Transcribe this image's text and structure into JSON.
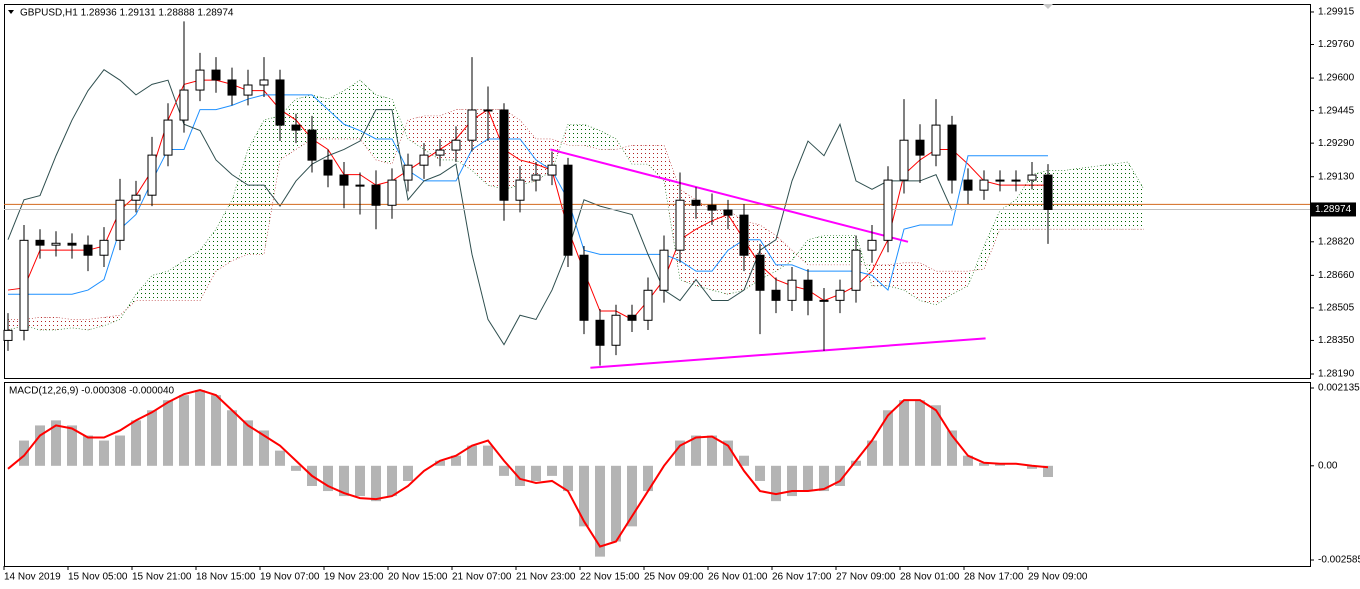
{
  "chart_data": [
    {
      "type": "candlestick",
      "title": "GBPUSD,H1  1.28936 1.29131 1.28888 1.28974",
      "x": [
        "14 Nov 2019",
        null,
        null,
        null,
        "15 Nov 05:00",
        null,
        null,
        null,
        "15 Nov 21:00",
        null,
        null,
        null,
        "18 Nov 15:00",
        null,
        null,
        null,
        "19 Nov 07:00",
        null,
        null,
        null,
        "19 Nov 23:00",
        null,
        null,
        null,
        "20 Nov 15:00",
        null,
        null,
        null,
        "21 Nov 07:00",
        null,
        null,
        null,
        "21 Nov 23:00",
        null,
        null,
        null,
        "22 Nov 15:00",
        null,
        null,
        null,
        "25 Nov 09:00",
        null,
        null,
        null,
        "26 Nov 01:00",
        null,
        null,
        null,
        "26 Nov 17:00",
        null,
        null,
        null,
        "27 Nov 09:00",
        null,
        null,
        null,
        "28 Nov 01:00",
        null,
        null,
        null,
        "28 Nov 17:00",
        null,
        null,
        null,
        "29 Nov 09:00",
        null,
        null,
        null,
        null,
        null,
        null,
        null
      ],
      "open": [
        1.2835,
        1.28398,
        1.28827,
        1.28804,
        1.28813,
        1.28804,
        1.28756,
        1.28827,
        1.29018,
        1.29042,
        1.29233,
        1.294,
        1.29543,
        1.29638,
        1.29591,
        1.29519,
        1.29567,
        1.29591,
        1.29376,
        1.29352,
        1.29209,
        1.29138,
        1.2909,
        1.2909,
        1.28994,
        1.29114,
        1.29185,
        1.29233,
        1.29257,
        1.29304,
        1.29448,
        1.29448,
        1.29018,
        1.29114,
        1.29138,
        1.29185,
        1.28756,
        1.28446,
        1.28327,
        1.2847,
        1.28446,
        1.28589,
        1.2878,
        1.29018,
        1.28994,
        1.28971,
        1.28947,
        1.28756,
        1.28589,
        1.28541,
        1.28637,
        1.28541,
        1.28541,
        1.28589,
        1.2878,
        1.28827,
        1.29114,
        1.29304,
        1.29233,
        1.29376,
        1.29114,
        1.29066,
        1.29114,
        1.29114,
        1.29114,
        1.29138,
        null,
        null,
        null,
        null,
        null,
        null
      ],
      "high": [
        1.2848,
        1.289,
        1.2888,
        1.2887,
        1.2886,
        1.2885,
        1.2889,
        1.2912,
        1.2911,
        1.2932,
        1.2948,
        1.2987,
        1.2972,
        1.297,
        1.2965,
        1.2964,
        1.297,
        1.2964,
        1.2943,
        1.2942,
        1.2926,
        1.292,
        1.2915,
        1.2916,
        1.2917,
        1.2924,
        1.2929,
        1.2931,
        1.2937,
        1.297,
        1.2956,
        1.2948,
        1.2918,
        1.292,
        1.2925,
        1.2922,
        1.288,
        1.285,
        1.2852,
        1.2852,
        1.2865,
        1.2885,
        1.2915,
        1.2908,
        1.2905,
        1.2902,
        1.29,
        1.2881,
        1.2865,
        1.287,
        1.2869,
        1.286,
        1.2864,
        1.2885,
        1.289,
        1.2918,
        1.295,
        1.2938,
        1.295,
        1.2942,
        1.2917,
        1.2916,
        1.2916,
        1.2916,
        1.292,
        1.2919,
        null,
        null,
        null,
        null,
        null,
        null
      ],
      "low": [
        1.283,
        1.2835,
        1.2874,
        1.2875,
        1.2874,
        1.2868,
        1.287,
        1.2878,
        1.2896,
        1.2899,
        1.2918,
        1.2934,
        1.2949,
        1.2953,
        1.2947,
        1.2947,
        1.2951,
        1.293,
        1.2929,
        1.2915,
        1.2908,
        1.2898,
        1.2895,
        1.2888,
        1.2893,
        1.2906,
        1.2912,
        1.2918,
        1.292,
        1.2925,
        1.293,
        1.2892,
        1.2896,
        1.2906,
        1.2909,
        1.287,
        1.2838,
        1.2823,
        1.2828,
        1.2839,
        1.284,
        1.2853,
        1.2872,
        1.2893,
        1.289,
        1.2888,
        1.2868,
        1.2838,
        1.2848,
        1.2849,
        1.2847,
        1.283,
        1.2848,
        1.2853,
        1.2872,
        1.2877,
        1.2905,
        1.291,
        1.2918,
        1.2905,
        1.29,
        1.2902,
        1.2906,
        1.2906,
        1.2907,
        1.2881,
        null,
        null,
        null,
        null,
        null,
        null
      ],
      "close": [
        1.28398,
        1.28827,
        1.28804,
        1.28813,
        1.28804,
        1.28756,
        1.28827,
        1.29018,
        1.29042,
        1.29233,
        1.294,
        1.29543,
        1.29638,
        1.29591,
        1.29519,
        1.29567,
        1.29591,
        1.29376,
        1.29352,
        1.29209,
        1.29138,
        1.2909,
        1.2909,
        1.28994,
        1.29114,
        1.29185,
        1.29233,
        1.29257,
        1.29304,
        1.29448,
        1.29448,
        1.29018,
        1.29114,
        1.29138,
        1.29185,
        1.28756,
        1.28446,
        1.28327,
        1.2847,
        1.28446,
        1.28589,
        1.2878,
        1.29018,
        1.28994,
        1.28971,
        1.28947,
        1.28756,
        1.28589,
        1.28541,
        1.28637,
        1.28541,
        1.28541,
        1.28589,
        1.2878,
        1.28827,
        1.29114,
        1.29304,
        1.29233,
        1.29376,
        1.29114,
        1.29066,
        1.29114,
        1.29114,
        1.29114,
        1.29138,
        1.28974,
        null,
        null,
        null,
        null,
        null,
        null
      ],
      "color_up": "#ffffff",
      "color_down": "#000000",
      "candle_outline": "#000000",
      "lines": [
        {
          "color": "#ff0000",
          "values": [
            1.2859,
            1.286,
            1.2878,
            1.2878,
            1.2878,
            1.2878,
            1.288,
            1.2897,
            1.2904,
            1.2916,
            1.294,
            1.2957,
            1.2959,
            1.2959,
            1.2957,
            1.2954,
            1.2954,
            1.2945,
            1.294,
            1.2931,
            1.2926,
            1.2914,
            1.2914,
            1.2909,
            1.2911,
            1.2916,
            1.2921,
            1.2926,
            1.2931,
            1.294,
            1.2945,
            1.2926,
            1.2921,
            1.2919,
            1.2916,
            1.2888,
            1.2868,
            1.2849,
            1.2849,
            1.2845,
            1.2854,
            1.2864,
            1.2883,
            1.2888,
            1.2892,
            1.2895,
            1.2883,
            1.2871,
            1.2864,
            1.2861,
            1.2859,
            1.2854,
            1.2857,
            1.2861,
            1.2868,
            1.2883,
            1.2914,
            1.2921,
            1.2926,
            1.2926,
            1.2919,
            1.2911,
            1.2909,
            1.2909,
            1.2909,
            1.2909,
            null,
            null,
            null,
            null,
            null,
            null
          ]
        },
        {
          "color": "#1e90ff",
          "values": [
            1.2857,
            1.2857,
            1.2857,
            1.2857,
            1.2857,
            1.2859,
            1.2864,
            1.2888,
            1.2895,
            1.2911,
            1.2926,
            1.2926,
            1.2945,
            1.2945,
            1.2947,
            1.295,
            1.2952,
            1.2952,
            1.2952,
            1.2952,
            1.2945,
            1.2938,
            1.2935,
            1.2931,
            1.2931,
            1.2916,
            1.2911,
            1.2911,
            1.2911,
            1.2926,
            1.2931,
            1.2931,
            1.2931,
            1.2921,
            1.2916,
            1.2902,
            1.2878,
            1.2876,
            1.2876,
            1.2876,
            1.2876,
            1.2876,
            1.2873,
            1.2868,
            1.2868,
            1.2878,
            1.2883,
            1.2883,
            1.2871,
            1.2871,
            1.2868,
            1.2868,
            1.2868,
            1.2868,
            1.2866,
            1.2859,
            1.2888,
            1.289,
            1.289,
            1.289,
            1.2923,
            1.2923,
            1.2923,
            1.2923,
            1.2923,
            1.2923,
            null,
            null,
            null,
            null,
            null,
            null
          ]
        },
        {
          "color": "#2f4f4f",
          "values": [
            1.2883,
            1.2902,
            1.2904,
            1.2923,
            1.294,
            1.2954,
            1.2964,
            1.2959,
            1.2952,
            1.2957,
            1.2959,
            1.2938,
            1.2935,
            1.2921,
            1.2914,
            1.2909,
            1.2909,
            1.2899,
            1.2911,
            1.2919,
            1.2923,
            1.2926,
            1.293,
            1.2945,
            1.2945,
            1.2902,
            1.2911,
            1.2914,
            1.2919,
            1.2876,
            1.2845,
            1.2833,
            1.2847,
            1.2845,
            1.2859,
            1.2878,
            1.2902,
            1.2899,
            1.2897,
            1.2895,
            1.2876,
            1.2859,
            1.2854,
            1.2864,
            1.2854,
            1.2854,
            1.2859,
            1.2878,
            1.2883,
            1.2911,
            1.293,
            1.2923,
            1.2938,
            1.2911,
            1.2907,
            1.2911,
            1.2911,
            1.2911,
            1.2914,
            1.2897,
            null,
            null,
            null,
            null,
            null,
            null,
            null,
            null,
            null,
            null,
            null,
            null
          ]
        }
      ],
      "cloud": {
        "span_a": [
          1.284,
          1.2842,
          1.284,
          1.284,
          1.2841,
          1.284,
          1.2842,
          1.2845,
          1.2857,
          1.2866,
          1.2868,
          1.2873,
          1.2878,
          1.2888,
          1.2902,
          1.2926,
          1.294,
          1.2942,
          1.295,
          1.2952,
          1.295,
          1.2954,
          1.2959,
          1.2952,
          1.295,
          1.2931,
          1.2926,
          1.2921,
          1.2921,
          1.2916,
          1.2909,
          1.2907,
          1.2909,
          1.2911,
          1.2916,
          1.2938,
          1.2938,
          1.2935,
          1.2931,
          1.2919,
          1.2919,
          1.2911,
          1.2864,
          1.2861,
          1.2859,
          1.2857,
          1.2859,
          1.2864,
          1.2868,
          1.2873,
          1.2883,
          1.2885,
          1.2885,
          1.2885,
          1.2861,
          1.2861,
          1.2859,
          1.2854,
          1.2852,
          1.2857,
          1.2861,
          1.288,
          1.2897,
          1.2902,
          1.2914,
          1.2916,
          1.2916,
          1.2917,
          1.2918,
          1.2919,
          1.292,
          1.2907
        ],
        "span_b": [
          1.2845,
          1.2845,
          1.2846,
          1.2846,
          1.2845,
          1.2845,
          1.2846,
          1.2847,
          1.2854,
          1.2854,
          1.2854,
          1.2854,
          1.2854,
          1.2868,
          1.2873,
          1.2876,
          1.2876,
          1.2921,
          1.2926,
          1.2931,
          1.2931,
          1.2931,
          1.2931,
          1.2921,
          1.2919,
          1.294,
          1.2942,
          1.2942,
          1.2945,
          1.2945,
          1.2945,
          1.2945,
          1.294,
          1.2931,
          1.2931,
          1.2928,
          1.2928,
          1.2926,
          1.2926,
          1.2928,
          1.2928,
          1.2928,
          1.2907,
          1.2902,
          1.2897,
          1.2897,
          1.2892,
          1.289,
          1.2885,
          1.2878,
          1.2871,
          1.2871,
          1.2871,
          1.2871,
          1.2871,
          1.2871,
          1.2872,
          1.2872,
          1.2868,
          1.2868,
          1.2868,
          1.2869,
          1.2888,
          1.2888,
          1.2888,
          1.2888,
          1.2888,
          1.2888,
          1.2888,
          1.2888,
          1.2888,
          1.2888
        ],
        "color_up": "#006400",
        "color_down": "#b22222"
      },
      "trendlines": [
        {
          "color": "#ff00ff",
          "x": [
            33.9,
            56.25
          ],
          "y": [
            1.2926,
            1.2882
          ]
        },
        {
          "color": "#ff00ff",
          "x": [
            36.4,
            61.1
          ],
          "y": [
            1.2822,
            1.2836
          ]
        }
      ],
      "price_lines": [
        {
          "value": 1.28998,
          "color": "#d2691e"
        },
        {
          "value": 1.28974,
          "color": "#c0c0c0"
        }
      ],
      "ylim": [
        1.28171,
        1.29953
      ],
      "yticks": [
        1.29915,
        {
          "value": 1.2976,
          "label": "1.29760"
        },
        {
          "value": 1.296,
          "label": "1.29600"
        },
        1.29445,
        {
          "value": 1.2929,
          "label": "1.29290"
        },
        {
          "value": 1.2913,
          "label": "1.29130"
        },
        {
          "value": 1.2882,
          "label": "1.28820"
        },
        {
          "value": 1.2866,
          "label": "1.28660"
        },
        1.28505,
        {
          "value": 1.2835,
          "label": "1.28350"
        },
        {
          "value": 1.2819,
          "label": "1.28190"
        }
      ]
    },
    {
      "type": "bar",
      "title": "MACD(12,26,9) -0.000308 -0.000040",
      "values": [
        0,
        0.000693,
        0.001108,
        0.001247,
        0.001108,
        0.000831,
        0.000693,
        0.000831,
        0.001247,
        0.001524,
        0.001801,
        0.001939,
        0.002078,
        0.001939,
        0.001524,
        0.001247,
        0.00097,
        0.000416,
        -0.000139,
        -0.000554,
        -0.000693,
        -0.000831,
        -0.000831,
        -0.00097,
        -0.000831,
        -0.000416,
        0,
        0.000139,
        0.000277,
        0.000554,
        0.000554,
        -0.000277,
        -0.000554,
        -0.000416,
        -0.000277,
        -0.000693,
        -0.001662,
        -0.002493,
        -0.002078,
        -0.001662,
        -0.000693,
        0,
        0.000693,
        0.000831,
        0.000831,
        0.000693,
        0.000277,
        -0.000416,
        -0.00097,
        -0.000831,
        -0.000693,
        -0.000693,
        -0.000554,
        0.000139,
        0.000693,
        0.001524,
        0.001801,
        0.001801,
        0.001662,
        0.00097,
        0.000277,
        8.3e-05,
        5.5e-05,
        0,
        -8.3e-05,
        -0.000308
      ],
      "color": "#b4b4b4",
      "signal": [
        -8.3e-05,
        0.000277,
        0.000831,
        0.001108,
        0.001025,
        0.000776,
        0.000776,
        0.00097,
        0.001247,
        0.001468,
        0.001745,
        0.001967,
        0.002078,
        0.001939,
        0.001524,
        0.001108,
        0.000831,
        0.000554,
        0.000139,
        -0.000277,
        -0.000554,
        -0.000748,
        -0.000886,
        -0.000914,
        -0.000831,
        -0.000554,
        -0.000139,
        0.000139,
        0.000277,
        0.000554,
        0.000693,
        0.000139,
        -0.00036,
        -0.000471,
        -0.000416,
        -0.000693,
        -0.001524,
        -0.002216,
        -0.002078,
        -0.001385,
        -0.000693,
        0,
        0.000554,
        0.000776,
        0.000803,
        0.000554,
        -0.000139,
        -0.000693,
        -0.000776,
        -0.000693,
        -0.000693,
        -0.000637,
        -0.000416,
        0.000139,
        0.000693,
        0.001385,
        0.001801,
        0.001801,
        0.001524,
        0.000831,
        0.000277,
        8.3e-05,
        5.5e-05,
        5.5e-05,
        0,
        -4e-05
      ],
      "signal_color": "#ff0000",
      "ylim": [
        -0.00275,
        0.0023
      ],
      "yticks": [
        0.002135,
        {
          "value": 0,
          "label": "0.00"
        },
        -0.002585
      ]
    }
  ]
}
